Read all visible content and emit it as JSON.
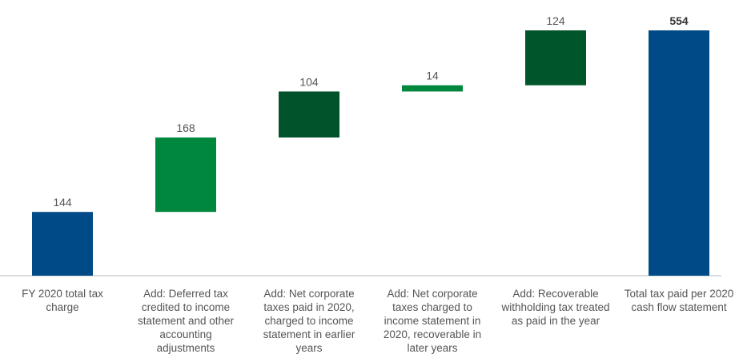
{
  "chart_data": {
    "type": "waterfall",
    "categories": [
      "FY 2020 total tax charge",
      "Add: Deferred tax credited to income statement and other accounting adjustments",
      "Add: Net corporate taxes paid in 2020, charged to income statement in earlier years",
      "Add: Net corporate taxes charged to income statement in 2020, recoverable in later years",
      "Add: Recoverable withholding tax treated as paid in the year",
      "Total tax paid per 2020 cash flow statement"
    ],
    "values": [
      144,
      168,
      104,
      14,
      124,
      554
    ],
    "colors": [
      "#004b87",
      "#00873e",
      "#00532a",
      "#00873e",
      "#00552a",
      "#004b87"
    ]
  }
}
